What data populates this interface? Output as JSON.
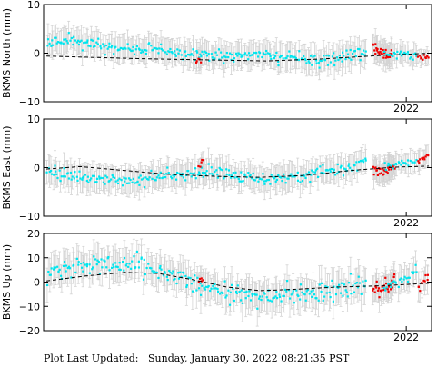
{
  "footer": {
    "label": "Plot Last Updated:",
    "timestamp": "Sunday, January 30, 2022 08:21:35 PST"
  },
  "colors": {
    "cyan": "#00e5ee",
    "red": "#ee0000",
    "errorbar": "#d3d3d3",
    "trend": "#000000"
  },
  "chart_data": [
    {
      "type": "scatter",
      "ylabel": "BKMS North (mm)",
      "ylim": [
        -10,
        10
      ],
      "yticks": [
        "10",
        "0",
        "−10"
      ],
      "x_tick_label": "2022",
      "x_range": [
        2015.55,
        2022.45
      ],
      "x_tick_value": 2022.0,
      "trend": [
        [
          2015.6,
          -0.6
        ],
        [
          2016.5,
          -0.9
        ],
        [
          2017.5,
          -1.2
        ],
        [
          2018.5,
          -1.4
        ],
        [
          2019.5,
          -1.6
        ],
        [
          2020.5,
          -1.2
        ],
        [
          2021.5,
          -0.5
        ],
        [
          2022.4,
          0.0
        ]
      ],
      "series": [
        {
          "color": "cyan",
          "base": [
            [
              2015.6,
              2.2
            ],
            [
              2016.0,
              2.5
            ],
            [
              2016.5,
              1.8
            ],
            [
              2017.0,
              0.5
            ],
            [
              2017.5,
              1.0
            ],
            [
              2018.0,
              0.0
            ],
            [
              2018.5,
              -0.5
            ],
            [
              2019.0,
              -0.5
            ],
            [
              2019.5,
              -0.2
            ],
            [
              2020.0,
              -1.0
            ],
            [
              2020.5,
              -1.5
            ],
            [
              2020.9,
              -1.0
            ],
            [
              2021.3,
              0.5
            ]
          ],
          "spread": 1.5,
          "err": 2.5,
          "n": 260,
          "seed": 11
        },
        {
          "color": "red",
          "base": [
            [
              2018.25,
              -1.5
            ],
            [
              2018.35,
              -2.0
            ]
          ],
          "spread": 0.8,
          "err": 2.0,
          "n": 5,
          "seed": 12
        },
        {
          "color": "red",
          "base": [
            [
              2021.4,
              1.5
            ],
            [
              2021.55,
              0.0
            ],
            [
              2021.75,
              0.0
            ]
          ],
          "spread": 1.3,
          "err": 2.5,
          "n": 28,
          "seed": 13
        },
        {
          "color": "cyan",
          "base": [
            [
              2021.6,
              0.0
            ],
            [
              2022.0,
              -0.5
            ],
            [
              2022.2,
              0.0
            ]
          ],
          "spread": 1.0,
          "err": 2.0,
          "n": 25,
          "seed": 14
        },
        {
          "color": "red",
          "base": [
            [
              2022.2,
              -0.5
            ],
            [
              2022.4,
              -1.0
            ]
          ],
          "spread": 0.6,
          "err": 1.5,
          "n": 10,
          "seed": 15
        }
      ]
    },
    {
      "type": "scatter",
      "ylabel": "BKMS East (mm)",
      "ylim": [
        -10,
        10
      ],
      "yticks": [
        "10",
        "0",
        "−10"
      ],
      "x_tick_label": "2022",
      "x_range": [
        2015.55,
        2022.45
      ],
      "x_tick_value": 2022.0,
      "trend": [
        [
          2015.6,
          -0.3
        ],
        [
          2016.2,
          0.2
        ],
        [
          2017.0,
          -0.6
        ],
        [
          2017.8,
          -1.4
        ],
        [
          2018.6,
          -1.8
        ],
        [
          2019.4,
          -2.0
        ],
        [
          2020.2,
          -1.6
        ],
        [
          2021.0,
          -0.6
        ],
        [
          2021.8,
          0.1
        ],
        [
          2022.4,
          0.3
        ]
      ],
      "series": [
        {
          "color": "cyan",
          "base": [
            [
              2015.6,
              -0.5
            ],
            [
              2016.0,
              -1.5
            ],
            [
              2016.5,
              -2.5
            ],
            [
              2017.0,
              -3.0
            ],
            [
              2017.5,
              -2.0
            ],
            [
              2018.0,
              -1.5
            ],
            [
              2018.5,
              -0.5
            ],
            [
              2019.0,
              -2.0
            ],
            [
              2019.5,
              -2.5
            ],
            [
              2020.0,
              -2.0
            ],
            [
              2020.5,
              -1.0
            ],
            [
              2021.0,
              0.0
            ],
            [
              2021.3,
              1.5
            ]
          ],
          "spread": 1.5,
          "err": 2.5,
          "n": 260,
          "seed": 21
        },
        {
          "color": "red",
          "base": [
            [
              2018.3,
              0.5
            ],
            [
              2018.4,
              1.5
            ]
          ],
          "spread": 0.8,
          "err": 2.0,
          "n": 5,
          "seed": 22
        },
        {
          "color": "red",
          "base": [
            [
              2021.4,
              -0.5
            ],
            [
              2021.6,
              -1.0
            ],
            [
              2021.8,
              0.5
            ]
          ],
          "spread": 1.5,
          "err": 2.5,
          "n": 28,
          "seed": 23
        },
        {
          "color": "cyan",
          "base": [
            [
              2021.6,
              0.5
            ],
            [
              2022.0,
              1.0
            ],
            [
              2022.2,
              1.5
            ]
          ],
          "spread": 1.0,
          "err": 2.0,
          "n": 25,
          "seed": 24
        },
        {
          "color": "red",
          "base": [
            [
              2022.2,
              1.5
            ],
            [
              2022.4,
              2.5
            ]
          ],
          "spread": 0.8,
          "err": 2.0,
          "n": 10,
          "seed": 25
        }
      ]
    },
    {
      "type": "scatter",
      "ylabel": "BKMS Up (mm)",
      "ylim": [
        -20,
        20
      ],
      "yticks": [
        "20",
        "10",
        "0",
        "−10",
        "−20"
      ],
      "x_tick_label": "2022",
      "x_range": [
        2015.55,
        2022.45
      ],
      "x_tick_value": 2022.0,
      "trend": [
        [
          2015.6,
          0.5
        ],
        [
          2016.3,
          2.5
        ],
        [
          2017.0,
          4.0
        ],
        [
          2017.6,
          3.5
        ],
        [
          2018.2,
          1.0
        ],
        [
          2018.8,
          -2.0
        ],
        [
          2019.4,
          -3.5
        ],
        [
          2020.0,
          -3.0
        ],
        [
          2020.8,
          -2.0
        ],
        [
          2021.6,
          -1.5
        ],
        [
          2022.4,
          -0.5
        ]
      ],
      "series": [
        {
          "color": "cyan",
          "base": [
            [
              2015.6,
              3.0
            ],
            [
              2016.0,
              6.0
            ],
            [
              2016.5,
              8.0
            ],
            [
              2017.0,
              7.0
            ],
            [
              2017.5,
              5.0
            ],
            [
              2018.0,
              2.0
            ],
            [
              2018.5,
              -2.0
            ],
            [
              2019.0,
              -5.0
            ],
            [
              2019.5,
              -6.0
            ],
            [
              2020.0,
              -5.0
            ],
            [
              2020.5,
              -4.0
            ],
            [
              2021.0,
              -3.0
            ],
            [
              2021.3,
              0.0
            ]
          ],
          "spread": 5.0,
          "err": 6.0,
          "n": 260,
          "seed": 31
        },
        {
          "color": "red",
          "base": [
            [
              2018.3,
              1.0
            ],
            [
              2018.4,
              0.5
            ]
          ],
          "spread": 1.0,
          "err": 4.0,
          "n": 5,
          "seed": 32
        },
        {
          "color": "red",
          "base": [
            [
              2021.4,
              -3.0
            ],
            [
              2021.6,
              -2.0
            ],
            [
              2021.8,
              1.0
            ]
          ],
          "spread": 3.5,
          "err": 5.0,
          "n": 28,
          "seed": 33
        },
        {
          "color": "cyan",
          "base": [
            [
              2021.6,
              -2.0
            ],
            [
              2022.0,
              2.0
            ],
            [
              2022.2,
              4.0
            ]
          ],
          "spread": 4.0,
          "err": 5.0,
          "n": 25,
          "seed": 34
        },
        {
          "color": "red",
          "base": [
            [
              2022.2,
              -2.0
            ],
            [
              2022.4,
              3.0
            ]
          ],
          "spread": 4.0,
          "err": 5.0,
          "n": 10,
          "seed": 35
        }
      ]
    }
  ]
}
